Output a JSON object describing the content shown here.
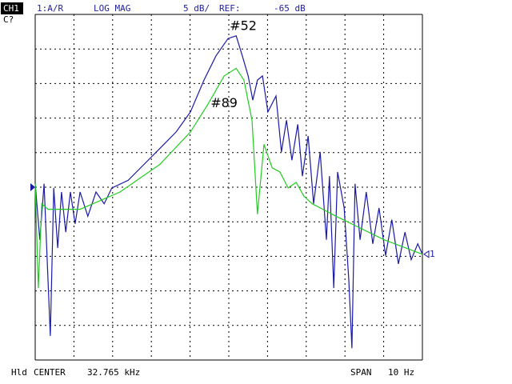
{
  "chart_data": {
    "type": "line",
    "channel": "CH1",
    "measurement": "1:A/R",
    "format": "LOG MAG",
    "scale_label": "5 dB/",
    "ref_label": "REF:",
    "ref_value": "-65 dB",
    "status": "C?",
    "hold": "Hld",
    "center_label": "CENTER",
    "center_value": "32.765 kHz",
    "span_label": "SPAN",
    "span_value": "10 Hz",
    "marker_label": "1",
    "xlim": [
      32.76,
      32.77
    ],
    "ylim": [
      -90,
      -40
    ],
    "series": [
      {
        "name": "#52",
        "color": "#1a1aa8",
        "x": [
          32.76,
          32.76012,
          32.76023,
          32.76033,
          32.76039,
          32.76048,
          32.76058,
          32.76068,
          32.76079,
          32.76091,
          32.76103,
          32.76116,
          32.76136,
          32.76157,
          32.76178,
          32.76198,
          32.7624,
          32.76281,
          32.76322,
          32.76364,
          32.76401,
          32.76436,
          32.76467,
          32.76498,
          32.76519,
          32.76535,
          32.7655,
          32.76562,
          32.76574,
          32.76587,
          32.76601,
          32.76622,
          32.76636,
          32.76649,
          32.76663,
          32.76678,
          32.7669,
          32.76705,
          32.76719,
          32.76736,
          32.76752,
          32.7676,
          32.76771,
          32.76781,
          32.76798,
          32.7681,
          32.76818,
          32.76826,
          32.76839,
          32.76855,
          32.76872,
          32.76888,
          32.76905,
          32.76921,
          32.76938,
          32.76955,
          32.76971,
          32.76988,
          32.77
        ],
        "values": [
          -64.5,
          -72.6,
          -64.5,
          -78.4,
          -86.5,
          -65.1,
          -73.8,
          -65.7,
          -71.5,
          -65.7,
          -70.3,
          -65.7,
          -69.2,
          -65.7,
          -67.4,
          -65.1,
          -64.0,
          -61.7,
          -59.4,
          -57.0,
          -54.1,
          -49.5,
          -46.0,
          -43.5,
          -43.1,
          -46.0,
          -48.9,
          -52.4,
          -49.5,
          -48.9,
          -54.1,
          -51.8,
          -59.9,
          -55.3,
          -61.1,
          -55.9,
          -63.4,
          -57.6,
          -67.4,
          -59.9,
          -72.6,
          -63.4,
          -79.6,
          -62.8,
          -68.0,
          -78.4,
          -88.3,
          -64.5,
          -72.6,
          -65.7,
          -73.2,
          -68.0,
          -74.9,
          -69.7,
          -76.1,
          -71.5,
          -75.5,
          -73.2,
          -74.7
        ]
      },
      {
        "name": "#89",
        "color": "#22cc22",
        "x": [
          32.76,
          32.76008,
          32.76017,
          32.76033,
          32.76116,
          32.76219,
          32.76322,
          32.76401,
          32.76446,
          32.76488,
          32.76519,
          32.76539,
          32.7656,
          32.76574,
          32.76591,
          32.76612,
          32.76632,
          32.76653,
          32.76674,
          32.76694,
          32.76715,
          32.76736,
          32.76777,
          32.76839,
          32.76901,
          32.77
        ],
        "values": [
          -64.5,
          -79.6,
          -67.4,
          -68.2,
          -68.2,
          -65.7,
          -61.7,
          -57.0,
          -53.0,
          -48.9,
          -47.8,
          -49.5,
          -55.3,
          -68.9,
          -58.8,
          -62.2,
          -62.8,
          -65.1,
          -64.3,
          -66.3,
          -67.4,
          -68.0,
          -69.2,
          -70.9,
          -72.6,
          -74.7
        ]
      }
    ]
  }
}
